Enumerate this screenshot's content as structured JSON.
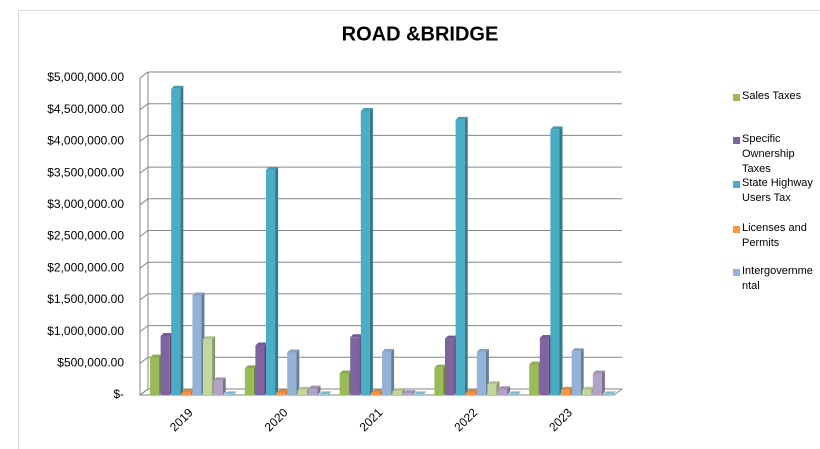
{
  "chart_data": {
    "type": "bar",
    "title": "ROAD &BRIDGE",
    "categories": [
      "2019",
      "2020",
      "2021",
      "2022",
      "2023"
    ],
    "series": [
      {
        "name": "Sales Taxes",
        "color": "#9bbb59",
        "values": [
          590000,
          420000,
          340000,
          430000,
          480000
        ]
      },
      {
        "name": "Specific Ownership Taxes",
        "color": "#8064a2",
        "values": [
          930000,
          780000,
          910000,
          890000,
          900000
        ]
      },
      {
        "name": "State Highway Users Tax",
        "color": "#4bacc6",
        "values": [
          4830000,
          3550000,
          4480000,
          4340000,
          4190000
        ]
      },
      {
        "name": "Licenses and Permits",
        "color": "#f79646",
        "values": [
          40000,
          40000,
          40000,
          40000,
          80000
        ]
      },
      {
        "name": "Intergovernmental",
        "color": "#95b3d7",
        "values": [
          1570000,
          670000,
          680000,
          680000,
          690000
        ]
      },
      {
        "color": "#c3d69b",
        "values": [
          880000,
          80000,
          60000,
          170000,
          80000
        ]
      },
      {
        "color": "#b3a2c7",
        "values": [
          230000,
          100000,
          30000,
          90000,
          340000
        ]
      },
      {
        "color": "#93cddd",
        "values": [
          10000,
          10000,
          10000,
          10000,
          10000
        ]
      }
    ],
    "ylim": [
      0,
      5000000
    ],
    "yticks": [
      {
        "value": 0,
        "label": "$-"
      },
      {
        "value": 500000,
        "label": "$500,000.00"
      },
      {
        "value": 1000000,
        "label": "$1,000,000.00"
      },
      {
        "value": 1500000,
        "label": "$1,500,000.00"
      },
      {
        "value": 2000000,
        "label": "$2,000,000.00"
      },
      {
        "value": 2500000,
        "label": "$2,500,000.00"
      },
      {
        "value": 3000000,
        "label": "$3,000,000.00"
      },
      {
        "value": 3500000,
        "label": "$3,500,000.00"
      },
      {
        "value": 4000000,
        "label": "$4,000,000.00"
      },
      {
        "value": 4500000,
        "label": "$4,500,000.00"
      },
      {
        "value": 5000000,
        "label": "$5,000,000.00"
      }
    ],
    "grid": true
  }
}
